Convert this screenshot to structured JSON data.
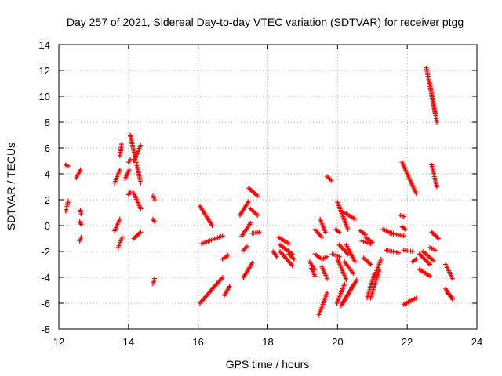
{
  "chart_data": {
    "type": "scatter",
    "title": "Day 257 of 2021, Sidereal Day-to-day VTEC variation (SDTVAR) for receiver ptgg",
    "xlabel": "GPS time / hours",
    "ylabel": "SDTVAR / TECUs",
    "xlim": [
      12,
      24
    ],
    "ylim": [
      -8,
      14
    ],
    "xticks": [
      12,
      14,
      16,
      18,
      20,
      22,
      24
    ],
    "yticks": [
      -8,
      -6,
      -4,
      -2,
      0,
      2,
      4,
      6,
      8,
      10,
      12,
      14
    ],
    "grid": true,
    "marker": "plus",
    "color": "#ff0000",
    "segments": [
      {
        "x": [
          12.2,
          12.27
        ],
        "y": [
          4.7,
          4.6
        ]
      },
      {
        "x": [
          12.2,
          12.27
        ],
        "y": [
          1.1,
          1.9
        ]
      },
      {
        "x": [
          12.5,
          12.62
        ],
        "y": [
          3.7,
          4.3
        ]
      },
      {
        "x": [
          12.62,
          12.64
        ],
        "y": [
          1.2,
          0.9
        ]
      },
      {
        "x": [
          12.6,
          12.64
        ],
        "y": [
          0.3,
          0.1
        ]
      },
      {
        "x": [
          12.6,
          12.64
        ],
        "y": [
          -1.2,
          -0.9
        ]
      },
      {
        "x": [
          13.6,
          13.75
        ],
        "y": [
          3.3,
          4.3
        ]
      },
      {
        "x": [
          13.75,
          13.8
        ],
        "y": [
          5.4,
          6.3
        ]
      },
      {
        "x": [
          13.6,
          13.75
        ],
        "y": [
          -0.4,
          0.5
        ]
      },
      {
        "x": [
          13.7,
          13.82
        ],
        "y": [
          -1.7,
          -0.9
        ]
      },
      {
        "x": [
          13.9,
          14.02
        ],
        "y": [
          3.6,
          4.3
        ]
      },
      {
        "x": [
          14.0,
          14.05
        ],
        "y": [
          2.4,
          2.6
        ]
      },
      {
        "x": [
          14.0,
          14.05
        ],
        "y": [
          4.9,
          5.1
        ]
      },
      {
        "x": [
          14.05,
          14.35
        ],
        "y": [
          7.0,
          3.3
        ]
      },
      {
        "x": [
          14.15,
          14.35
        ],
        "y": [
          5.0,
          6.2
        ]
      },
      {
        "x": [
          14.15,
          14.35
        ],
        "y": [
          2.5,
          1.3
        ]
      },
      {
        "x": [
          14.15,
          14.35
        ],
        "y": [
          -1.0,
          -0.5
        ]
      },
      {
        "x": [
          14.7,
          14.75
        ],
        "y": [
          2.3,
          2.0
        ]
      },
      {
        "x": [
          14.7,
          14.75
        ],
        "y": [
          0.5,
          0.3
        ]
      },
      {
        "x": [
          14.7,
          14.75
        ],
        "y": [
          -4.5,
          -4.1
        ]
      },
      {
        "x": [
          16.05,
          16.4
        ],
        "y": [
          1.5,
          0.0
        ]
      },
      {
        "x": [
          16.1,
          16.7
        ],
        "y": [
          -1.4,
          -0.8
        ]
      },
      {
        "x": [
          16.05,
          16.7
        ],
        "y": [
          -6.0,
          -4.0
        ]
      },
      {
        "x": [
          16.7,
          16.85
        ],
        "y": [
          -2.6,
          -2.3
        ]
      },
      {
        "x": [
          16.75,
          16.9
        ],
        "y": [
          -5.4,
          -4.7
        ]
      },
      {
        "x": [
          17.2,
          17.45
        ],
        "y": [
          0.8,
          1.9
        ]
      },
      {
        "x": [
          17.45,
          17.7
        ],
        "y": [
          2.9,
          2.3
        ]
      },
      {
        "x": [
          17.5,
          17.7
        ],
        "y": [
          1.3,
          0.8
        ]
      },
      {
        "x": [
          17.25,
          17.5
        ],
        "y": [
          -0.8,
          0.2
        ]
      },
      {
        "x": [
          17.3,
          17.4
        ],
        "y": [
          -1.9,
          -1.6
        ]
      },
      {
        "x": [
          17.3,
          17.55
        ],
        "y": [
          -4.0,
          -2.9
        ]
      },
      {
        "x": [
          17.55,
          17.75
        ],
        "y": [
          -0.6,
          -0.5
        ]
      },
      {
        "x": [
          18.3,
          18.6
        ],
        "y": [
          -0.9,
          -1.4
        ]
      },
      {
        "x": [
          18.35,
          18.7
        ],
        "y": [
          -1.5,
          -2.2
        ]
      },
      {
        "x": [
          18.35,
          18.7
        ],
        "y": [
          -2.0,
          -3.1
        ]
      },
      {
        "x": [
          18.6,
          18.75
        ],
        "y": [
          -2.2,
          -2.6
        ]
      },
      {
        "x": [
          18.15,
          18.25
        ],
        "y": [
          -2.0,
          -2.4
        ]
      },
      {
        "x": [
          19.2,
          19.35
        ],
        "y": [
          -2.8,
          -3.4
        ]
      },
      {
        "x": [
          19.25,
          19.35
        ],
        "y": [
          -3.3,
          -3.9
        ]
      },
      {
        "x": [
          19.35,
          19.55
        ],
        "y": [
          -0.3,
          -0.9
        ]
      },
      {
        "x": [
          19.5,
          19.65
        ],
        "y": [
          0.5,
          -0.5
        ]
      },
      {
        "x": [
          19.35,
          19.5
        ],
        "y": [
          -2.2,
          -2.5
        ]
      },
      {
        "x": [
          19.55,
          19.7
        ],
        "y": [
          -2.6,
          -2.4
        ]
      },
      {
        "x": [
          19.45,
          19.7
        ],
        "y": [
          -7.0,
          -5.2
        ]
      },
      {
        "x": [
          19.55,
          19.7
        ],
        "y": [
          -3.2,
          -4.1
        ]
      },
      {
        "x": [
          19.7,
          19.82
        ],
        "y": [
          3.8,
          3.5
        ]
      },
      {
        "x": [
          19.85,
          20.05
        ],
        "y": [
          -2.2,
          -2.4
        ]
      },
      {
        "x": [
          19.95,
          20.05
        ],
        "y": [
          -0.3,
          -0.5
        ]
      },
      {
        "x": [
          20.0,
          20.3
        ],
        "y": [
          1.8,
          -0.3
        ]
      },
      {
        "x": [
          20.2,
          20.5
        ],
        "y": [
          1.0,
          0.5
        ]
      },
      {
        "x": [
          20.05,
          20.3
        ],
        "y": [
          -1.5,
          -2.2
        ]
      },
      {
        "x": [
          20.0,
          20.25
        ],
        "y": [
          -2.6,
          -4.2
        ]
      },
      {
        "x": [
          20.2,
          20.45
        ],
        "y": [
          -2.8,
          -3.7
        ]
      },
      {
        "x": [
          20.25,
          20.5
        ],
        "y": [
          -1.5,
          -2.8
        ]
      },
      {
        "x": [
          19.98,
          20.2
        ],
        "y": [
          -6.0,
          -4.5
        ]
      },
      {
        "x": [
          20.1,
          20.55
        ],
        "y": [
          -6.2,
          -4.2
        ]
      },
      {
        "x": [
          20.2,
          20.45
        ],
        "y": [
          -5.8,
          -4.6
        ]
      },
      {
        "x": [
          20.65,
          20.8
        ],
        "y": [
          -0.4,
          -0.7
        ]
      },
      {
        "x": [
          20.7,
          20.95
        ],
        "y": [
          -1.2,
          -1.4
        ]
      },
      {
        "x": [
          20.8,
          21.0
        ],
        "y": [
          -0.9,
          -1.3
        ]
      },
      {
        "x": [
          20.75,
          20.95
        ],
        "y": [
          -2.5,
          -3.0
        ]
      },
      {
        "x": [
          20.85,
          21.05
        ],
        "y": [
          -5.6,
          -3.8
        ]
      },
      {
        "x": [
          20.95,
          21.2
        ],
        "y": [
          -5.6,
          -3.4
        ]
      },
      {
        "x": [
          21.05,
          21.25
        ],
        "y": [
          -4.0,
          -2.6
        ]
      },
      {
        "x": [
          21.3,
          21.6
        ],
        "y": [
          -0.3,
          -0.6
        ]
      },
      {
        "x": [
          21.5,
          21.9
        ],
        "y": [
          -0.6,
          -0.8
        ]
      },
      {
        "x": [
          21.4,
          21.75
        ],
        "y": [
          -1.9,
          -2.1
        ]
      },
      {
        "x": [
          21.85,
          22.25
        ],
        "y": [
          4.9,
          2.5
        ]
      },
      {
        "x": [
          21.8,
          21.9
        ],
        "y": [
          0.8,
          0.7
        ]
      },
      {
        "x": [
          21.85,
          21.95
        ],
        "y": [
          -0.1,
          -0.3
        ]
      },
      {
        "x": [
          21.9,
          22.15
        ],
        "y": [
          -1.9,
          -2.0
        ]
      },
      {
        "x": [
          21.9,
          22.25
        ],
        "y": [
          -6.1,
          -5.6
        ]
      },
      {
        "x": [
          22.15,
          22.25
        ],
        "y": [
          -2.8,
          -2.6
        ]
      },
      {
        "x": [
          22.35,
          22.65
        ],
        "y": [
          -2.2,
          -3.0
        ]
      },
      {
        "x": [
          22.45,
          22.75
        ],
        "y": [
          -2.0,
          -2.7
        ]
      },
      {
        "x": [
          22.35,
          22.65
        ],
        "y": [
          -3.4,
          -3.9
        ]
      },
      {
        "x": [
          22.55,
          22.85
        ],
        "y": [
          12.2,
          8.0
        ]
      },
      {
        "x": [
          22.65,
          22.8
        ],
        "y": [
          11.0,
          8.7
        ]
      },
      {
        "x": [
          22.7,
          22.85
        ],
        "y": [
          4.7,
          3.0
        ]
      },
      {
        "x": [
          22.7,
          22.9
        ],
        "y": [
          -0.5,
          -1.0
        ]
      },
      {
        "x": [
          22.65,
          22.8
        ],
        "y": [
          -1.7,
          -1.9
        ]
      },
      {
        "x": [
          23.1,
          23.3
        ],
        "y": [
          -3.0,
          -4.1
        ]
      },
      {
        "x": [
          23.1,
          23.3
        ],
        "y": [
          -4.9,
          -5.7
        ]
      },
      {
        "x": [
          23.15,
          23.3
        ],
        "y": [
          -5.2,
          -5.6
        ]
      }
    ]
  }
}
